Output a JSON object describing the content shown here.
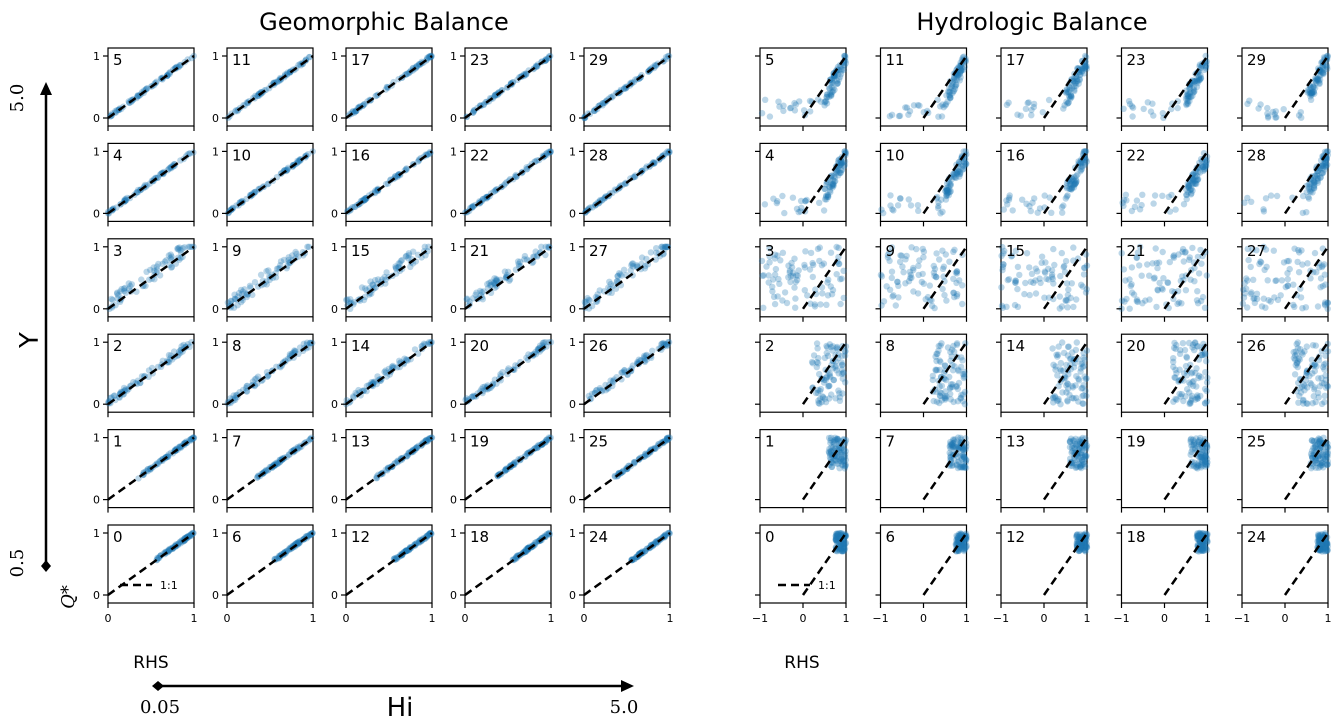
{
  "chart_data": [
    {
      "type": "scatter",
      "title": "Geomorphic Balance",
      "xlabel": "RHS",
      "ylabel": "Q*",
      "xlim": [
        0,
        1
      ],
      "ylim": [
        0,
        1
      ],
      "x_ticks": [
        "0",
        "1"
      ],
      "y_ticks": [
        "0",
        "1"
      ],
      "legend": {
        "label": "1:1",
        "placement": "lower-right of panel 0"
      },
      "panel_grid": [
        [
          5,
          11,
          17,
          23,
          29
        ],
        [
          4,
          10,
          16,
          22,
          28
        ],
        [
          3,
          9,
          15,
          21,
          27
        ],
        [
          2,
          8,
          14,
          20,
          26
        ],
        [
          1,
          7,
          13,
          19,
          25
        ],
        [
          0,
          6,
          12,
          18,
          24
        ]
      ],
      "reference_line": {
        "name": "1:1",
        "x": [
          0,
          1
        ],
        "y": [
          0,
          1
        ]
      }
    },
    {
      "type": "scatter",
      "title": "Hydrologic Balance",
      "xlabel": "RHS",
      "xlim": [
        -1,
        1
      ],
      "ylim": [
        0,
        1
      ],
      "x_ticks": [
        "−1",
        "0",
        "1"
      ],
      "legend": {
        "label": "1:1",
        "placement": "lower-left of panel 0"
      },
      "panel_grid": [
        [
          5,
          11,
          17,
          23,
          29
        ],
        [
          4,
          10,
          16,
          22,
          28
        ],
        [
          3,
          9,
          15,
          21,
          27
        ],
        [
          2,
          8,
          14,
          20,
          26
        ],
        [
          1,
          7,
          13,
          19,
          25
        ],
        [
          0,
          6,
          12,
          18,
          24
        ]
      ],
      "reference_line": {
        "name": "1:1",
        "x": [
          0,
          1
        ],
        "y": [
          0,
          1
        ]
      }
    }
  ],
  "axes_labels": {
    "gamma_label": "Υ",
    "gamma_top": "5.0",
    "gamma_bottom": "0.5",
    "q_label": "Q*",
    "hi_label": "Hi",
    "hi_left": "0.05",
    "hi_right": "5.0"
  },
  "colors": {
    "points": "#1f77b4",
    "reference": "#000000"
  }
}
